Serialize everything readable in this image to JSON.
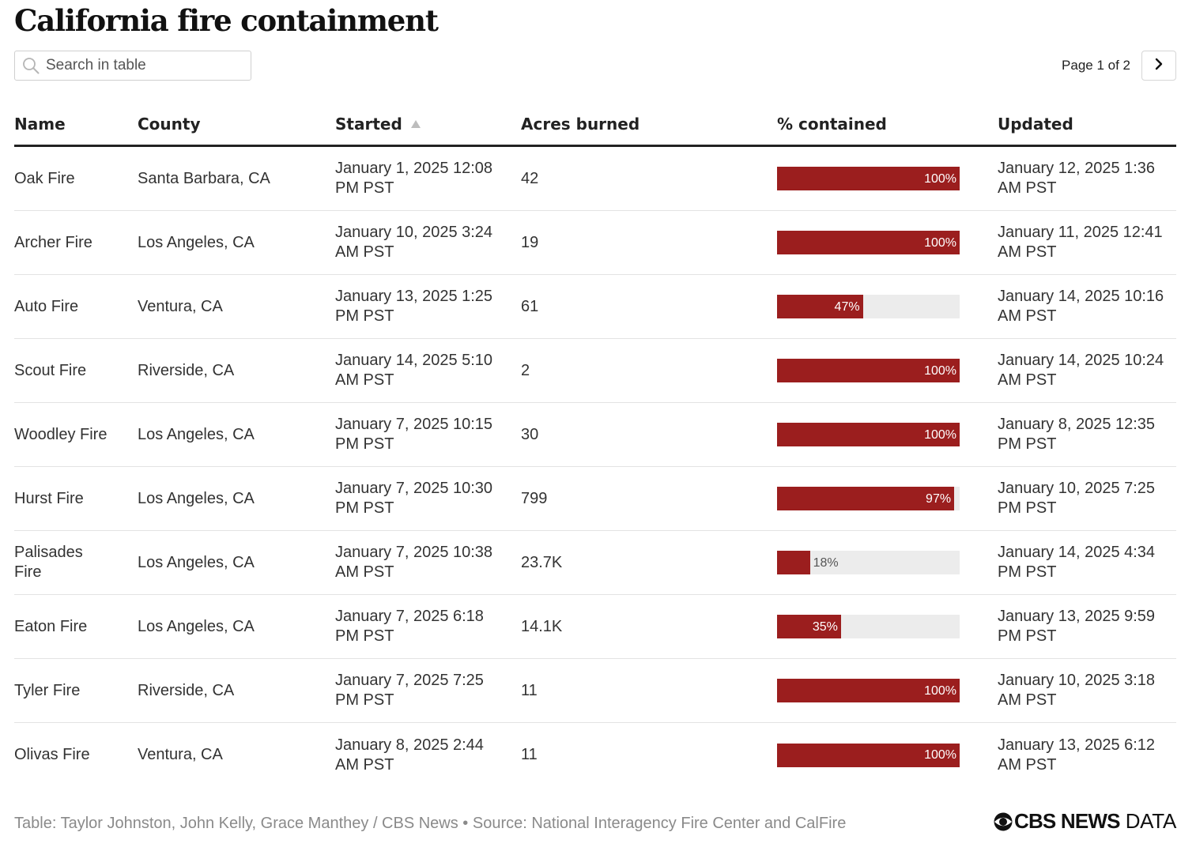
{
  "title": "California fire containment",
  "search": {
    "placeholder": "Search in table",
    "icon": "search-icon"
  },
  "pagination": {
    "label": "Page 1 of 2",
    "next_icon": "chevron-right-icon"
  },
  "colors": {
    "bar_fill": "#9b1e1e",
    "bar_track": "#ececec",
    "text": "#333333",
    "footer_text": "#8a8a8a"
  },
  "table": {
    "columns": [
      "Name",
      "County",
      "Started",
      "Acres burned",
      "% contained",
      "Updated"
    ],
    "sorted_column": "Started",
    "sort_icon": "sort-ascending-icon",
    "rows": [
      {
        "name": "Oak Fire",
        "county": "Santa Barbara, CA",
        "started": "January 1, 2025 12:08 PM PST",
        "acres": "42",
        "contained": 100,
        "contained_label": "100%",
        "updated": "January 12, 2025 1:36 AM PST"
      },
      {
        "name": "Archer Fire",
        "county": "Los Angeles, CA",
        "started": "January 10, 2025 3:24 AM PST",
        "acres": "19",
        "contained": 100,
        "contained_label": "100%",
        "updated": "January 11, 2025 12:41 AM PST"
      },
      {
        "name": "Auto Fire",
        "county": "Ventura, CA",
        "started": "January 13, 2025 1:25 PM PST",
        "acres": "61",
        "contained": 47,
        "contained_label": "47%",
        "updated": "January 14, 2025 10:16 AM PST"
      },
      {
        "name": "Scout Fire",
        "county": "Riverside, CA",
        "started": "January 14, 2025 5:10 AM PST",
        "acres": "2",
        "contained": 100,
        "contained_label": "100%",
        "updated": "January 14, 2025 10:24 AM PST"
      },
      {
        "name": "Woodley Fire",
        "county": "Los Angeles, CA",
        "started": "January 7, 2025 10:15 PM PST",
        "acres": "30",
        "contained": 100,
        "contained_label": "100%",
        "updated": "January 8, 2025 12:35 PM PST"
      },
      {
        "name": "Hurst Fire",
        "county": "Los Angeles, CA",
        "started": "January 7, 2025 10:30 PM PST",
        "acres": "799",
        "contained": 97,
        "contained_label": "97%",
        "updated": "January 10, 2025 7:25 PM PST"
      },
      {
        "name": "Palisades Fire",
        "county": "Los Angeles, CA",
        "started": "January 7, 2025 10:38 AM PST",
        "acres": "23.7K",
        "contained": 18,
        "contained_label": "18%",
        "updated": "January 14, 2025 4:34 PM PST"
      },
      {
        "name": "Eaton Fire",
        "county": "Los Angeles, CA",
        "started": "January 7, 2025 6:18 PM PST",
        "acres": "14.1K",
        "contained": 35,
        "contained_label": "35%",
        "updated": "January 13, 2025 9:59 PM PST"
      },
      {
        "name": "Tyler Fire",
        "county": "Riverside, CA",
        "started": "January 7, 2025 7:25 PM PST",
        "acres": "11",
        "contained": 100,
        "contained_label": "100%",
        "updated": "January 10, 2025 3:18 AM PST"
      },
      {
        "name": "Olivas Fire",
        "county": "Ventura, CA",
        "started": "January 8, 2025 2:44 AM PST",
        "acres": "11",
        "contained": 100,
        "contained_label": "100%",
        "updated": "January 13, 2025 6:12 AM PST"
      }
    ]
  },
  "footer": {
    "credit": "Table: Taylor Johnston, John Kelly, Grace Manthey / CBS News • Source: National Interagency Fire Center and CalFire",
    "logo": {
      "icon": "cbs-eye-logo-icon",
      "brand": "CBS NEWS",
      "suffix": "DATA"
    }
  }
}
